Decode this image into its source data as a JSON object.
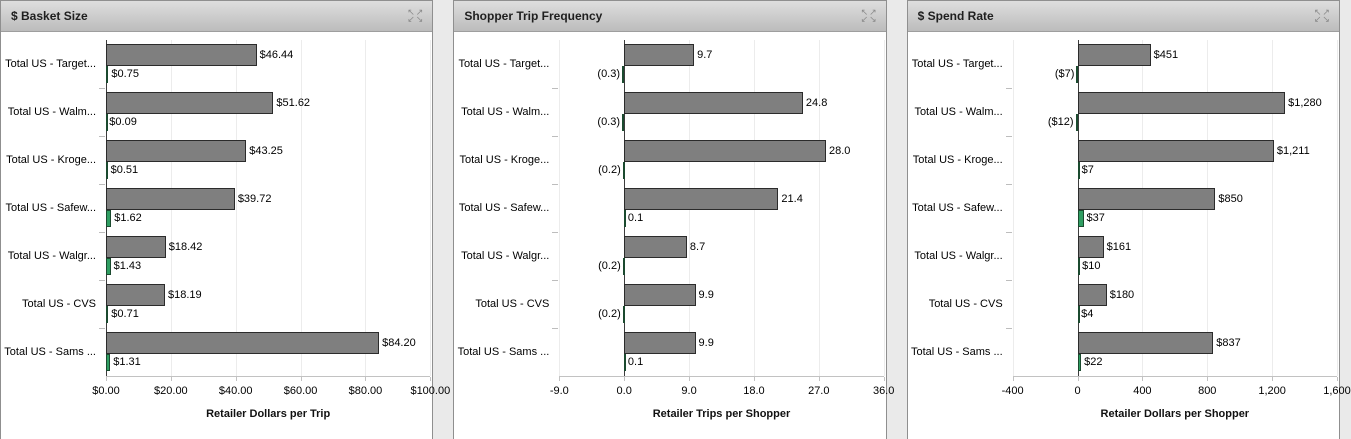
{
  "icons": {
    "expand_top": "↖↗",
    "expand_bottom": "↙↘"
  },
  "colors": {
    "primary_bar": "#7f7f7f",
    "secondary_bar": "#2f9e62",
    "header_text": "#1f1f1f"
  },
  "chart_data": [
    {
      "type": "bar",
      "orientation": "horizontal",
      "title": "$ Basket Size",
      "xlabel": "Retailer Dollars per Trip",
      "xlim": [
        0,
        100
      ],
      "xticks": [
        0,
        20,
        40,
        60,
        80,
        100
      ],
      "xtick_labels": [
        "$0.00",
        "$20.00",
        "$40.00",
        "$60.00",
        "$80.00",
        "$100.00"
      ],
      "grid": true,
      "legend": false,
      "categories": [
        "Total US - Target...",
        "Total US - Walm...",
        "Total US - Kroge...",
        "Total US - Safew...",
        "Total US - Walgr...",
        "Total US - CVS",
        "Total US - Sams ..."
      ],
      "series": [
        {
          "name": "primary",
          "color": "#7f7f7f",
          "values": [
            46.44,
            51.62,
            43.25,
            39.72,
            18.42,
            18.19,
            84.2
          ],
          "labels": [
            "$46.44",
            "$51.62",
            "$43.25",
            "$39.72",
            "$18.42",
            "$18.19",
            "$84.20"
          ]
        },
        {
          "name": "secondary",
          "color": "#2f9e62",
          "values": [
            0.75,
            0.09,
            0.51,
            1.62,
            1.43,
            0.71,
            1.31
          ],
          "labels": [
            "$0.75",
            "$0.09",
            "$0.51",
            "$1.62",
            "$1.43",
            "$0.71",
            "$1.31"
          ]
        }
      ]
    },
    {
      "type": "bar",
      "orientation": "horizontal",
      "title": "Shopper Trip Frequency",
      "xlabel": "Retailer Trips per Shopper",
      "xlim": [
        -9,
        36
      ],
      "xticks": [
        -9,
        0,
        9,
        18,
        27,
        36
      ],
      "xtick_labels": [
        "-9.0",
        "0.0",
        "9.0",
        "18.0",
        "27.0",
        "36.0"
      ],
      "grid": true,
      "legend": false,
      "categories": [
        "Total US - Target...",
        "Total US - Walm...",
        "Total US - Kroge...",
        "Total US - Safew...",
        "Total US - Walgr...",
        "Total US - CVS",
        "Total US - Sams ..."
      ],
      "series": [
        {
          "name": "primary",
          "color": "#7f7f7f",
          "values": [
            9.7,
            24.8,
            28.0,
            21.4,
            8.7,
            9.9,
            9.9
          ],
          "labels": [
            "9.7",
            "24.8",
            "28.0",
            "21.4",
            "8.7",
            "9.9",
            "9.9"
          ]
        },
        {
          "name": "secondary",
          "color": "#2f9e62",
          "values": [
            -0.3,
            -0.3,
            -0.2,
            0.1,
            -0.2,
            -0.2,
            0.1
          ],
          "labels": [
            "(0.3)",
            "(0.3)",
            "(0.2)",
            "0.1",
            "(0.2)",
            "(0.2)",
            "0.1"
          ]
        }
      ]
    },
    {
      "type": "bar",
      "orientation": "horizontal",
      "title": "$ Spend Rate",
      "xlabel": "Retailer Dollars per Shopper",
      "xlim": [
        -400,
        1600
      ],
      "xticks": [
        -400,
        0,
        400,
        800,
        1200,
        1600
      ],
      "xtick_labels": [
        "-400",
        "0",
        "400",
        "800",
        "1,200",
        "1,600"
      ],
      "grid": true,
      "legend": false,
      "categories": [
        "Total US - Target...",
        "Total US - Walm...",
        "Total US - Kroge...",
        "Total US - Safew...",
        "Total US - Walgr...",
        "Total US - CVS",
        "Total US - Sams ..."
      ],
      "series": [
        {
          "name": "primary",
          "color": "#7f7f7f",
          "values": [
            451,
            1280,
            1211,
            850,
            161,
            180,
            837
          ],
          "labels": [
            "$451",
            "$1,280",
            "$1,211",
            "$850",
            "$161",
            "$180",
            "$837"
          ]
        },
        {
          "name": "secondary",
          "color": "#2f9e62",
          "values": [
            -7,
            -12,
            7,
            37,
            10,
            4,
            22
          ],
          "labels": [
            "($7)",
            "($12)",
            "$7",
            "$37",
            "$10",
            "$4",
            "$22"
          ]
        }
      ]
    }
  ]
}
